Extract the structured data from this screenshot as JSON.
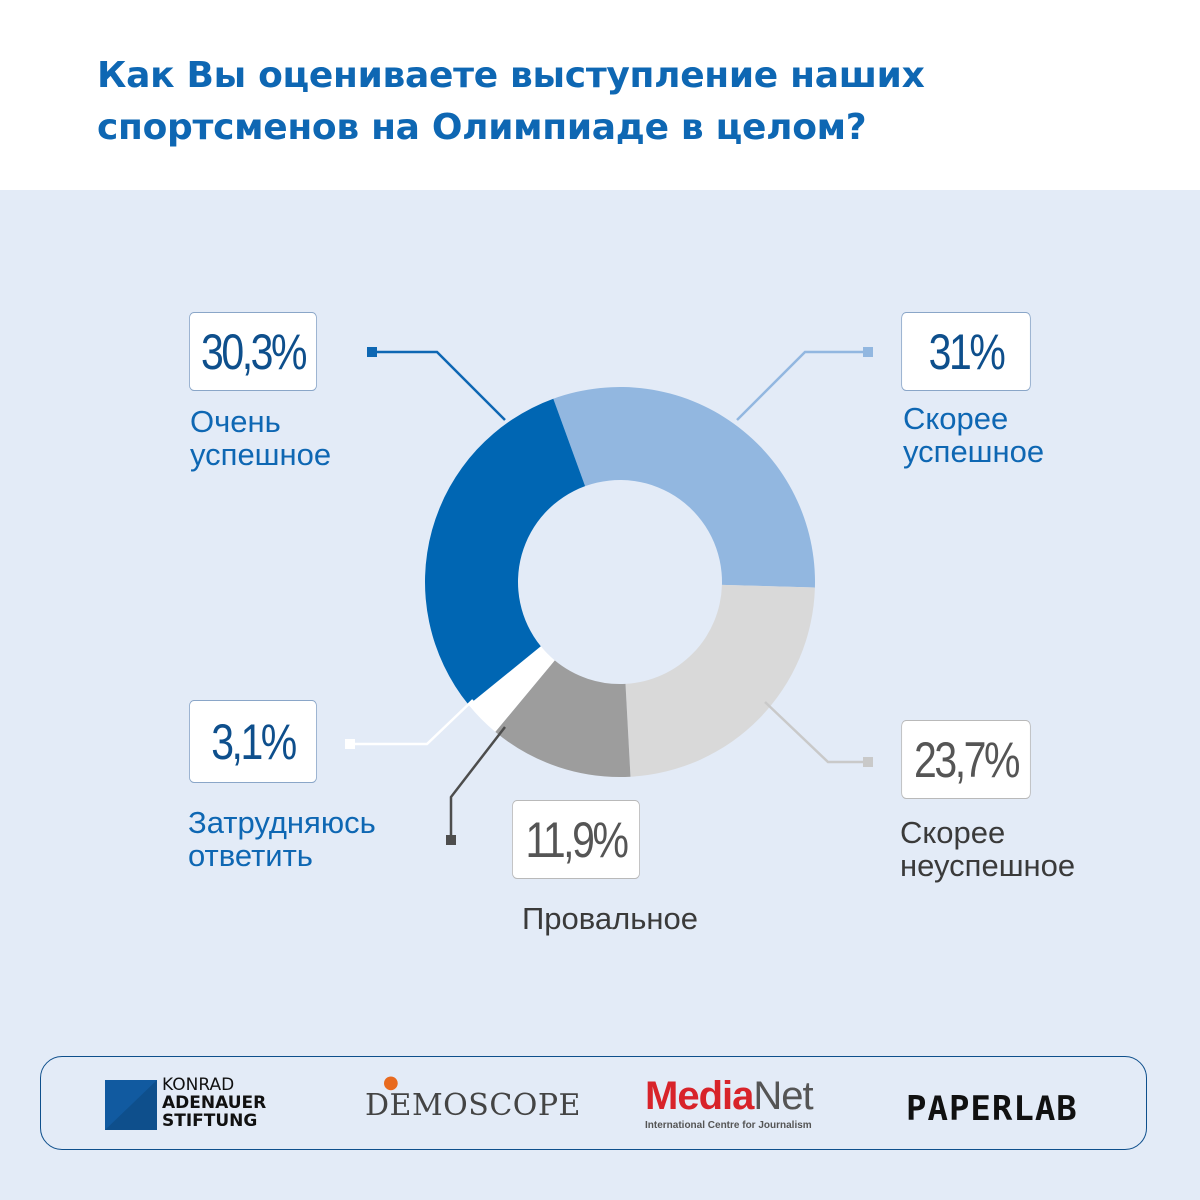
{
  "title": "Как Вы оцениваете выступление наших спортсменов на Олимпиаде в целом?",
  "chart_data": {
    "type": "pie",
    "variant": "donut",
    "title": "Как Вы оцениваете выступление наших спортсменов на Олимпиаде в целом?",
    "slices": [
      {
        "id": "very",
        "label": "Очень успешное",
        "label_lines": [
          "Очень",
          "успешное"
        ],
        "value": 30.3,
        "display": "30,3%",
        "color": "#0066b3"
      },
      {
        "id": "rather",
        "label": "Скорее успешное",
        "label_lines": [
          "Скорее",
          "успешное"
        ],
        "value": 31,
        "display": "31%",
        "color": "#92b7e0"
      },
      {
        "id": "rather_not",
        "label": "Скорее неуспешное",
        "label_lines": [
          "Скорее",
          "неуспешное"
        ],
        "value": 23.7,
        "display": "23,7%",
        "color": "#d9d9d9"
      },
      {
        "id": "failure",
        "label": "Провальное",
        "label_lines": [
          "Провальное"
        ],
        "value": 11.9,
        "display": "11,9%",
        "color": "#9d9d9d"
      },
      {
        "id": "hard",
        "label": "Затрудняюсь ответить",
        "label_lines": [
          "Затрудняюсь",
          "ответить"
        ],
        "value": 3.1,
        "display": "3,1%",
        "color": "#ffffff"
      }
    ]
  },
  "footer": {
    "kas_lines": [
      "KONRAD",
      "ADENAUER",
      "STIFTUNG"
    ],
    "demoscope": "DEMOSCOPE",
    "medianet_media": "Media",
    "medianet_net": "Net",
    "medianet_sub": "International Centre for Journalism",
    "paperlab": "PAPERLAB"
  }
}
